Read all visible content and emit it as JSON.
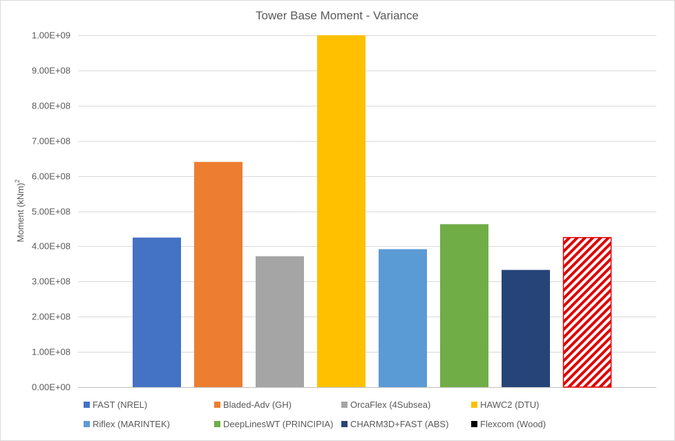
{
  "chart_data": {
    "type": "bar",
    "title": "Tower Base Moment - Variance",
    "ylabel": "Moment (kNm)",
    "ylabel_superscript": "2",
    "ylim": [
      0,
      1000000000
    ],
    "yticks": [
      0,
      100000000,
      200000000,
      300000000,
      400000000,
      500000000,
      600000000,
      700000000,
      800000000,
      900000000,
      1000000000
    ],
    "ytick_labels": [
      "0.00E+00",
      "1.00E+08",
      "2.00E+08",
      "3.00E+08",
      "4.00E+08",
      "5.00E+08",
      "6.00E+08",
      "7.00E+08",
      "8.00E+08",
      "9.00E+08",
      "1.00E+09"
    ],
    "grid": true,
    "legend_position": "bottom",
    "series": [
      {
        "name": "FAST (NREL)",
        "value": 425000000,
        "color": "#4472c4"
      },
      {
        "name": "Bladed-Adv (GH)",
        "value": 640000000,
        "color": "#ed7d31"
      },
      {
        "name": "OrcaFlex (4Subsea)",
        "value": 372000000,
        "color": "#a5a5a5"
      },
      {
        "name": "HAWC2 (DTU)",
        "value": 1000000000,
        "color": "#ffc000"
      },
      {
        "name": "Riflex (MARINTEK)",
        "value": 392000000,
        "color": "#5b9bd5"
      },
      {
        "name": "DeepLinesWT (PRINCIPIA)",
        "value": 463000000,
        "color": "#70ad47"
      },
      {
        "name": "CHARM3D+FAST (ABS)",
        "value": 333000000,
        "color": "#264478"
      },
      {
        "name": "Flexcom (Wood)",
        "value": null,
        "color": "#000000"
      }
    ],
    "extra_bar": {
      "value": 425000000,
      "pattern": "red-diagonal-hatch",
      "color": "#e00000"
    }
  }
}
